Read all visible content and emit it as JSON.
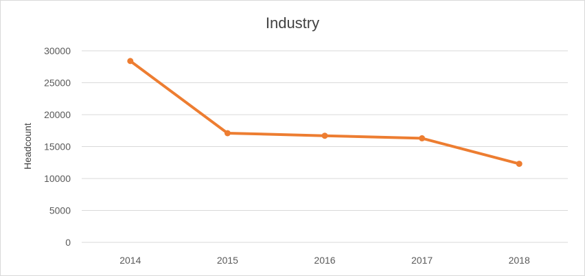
{
  "chart_data": {
    "type": "line",
    "title": "Industry",
    "xlabel": "",
    "ylabel": "Headcount",
    "categories": [
      "2014",
      "2015",
      "2016",
      "2017",
      "2018"
    ],
    "series": [
      {
        "values": [
          28400,
          17100,
          16700,
          16300,
          12300
        ],
        "color": "#ed7d31"
      }
    ],
    "ylim": [
      0,
      30000
    ],
    "yticks": [
      0,
      5000,
      10000,
      15000,
      20000,
      25000,
      30000
    ],
    "grid": true,
    "legend": "none",
    "markers": true
  }
}
